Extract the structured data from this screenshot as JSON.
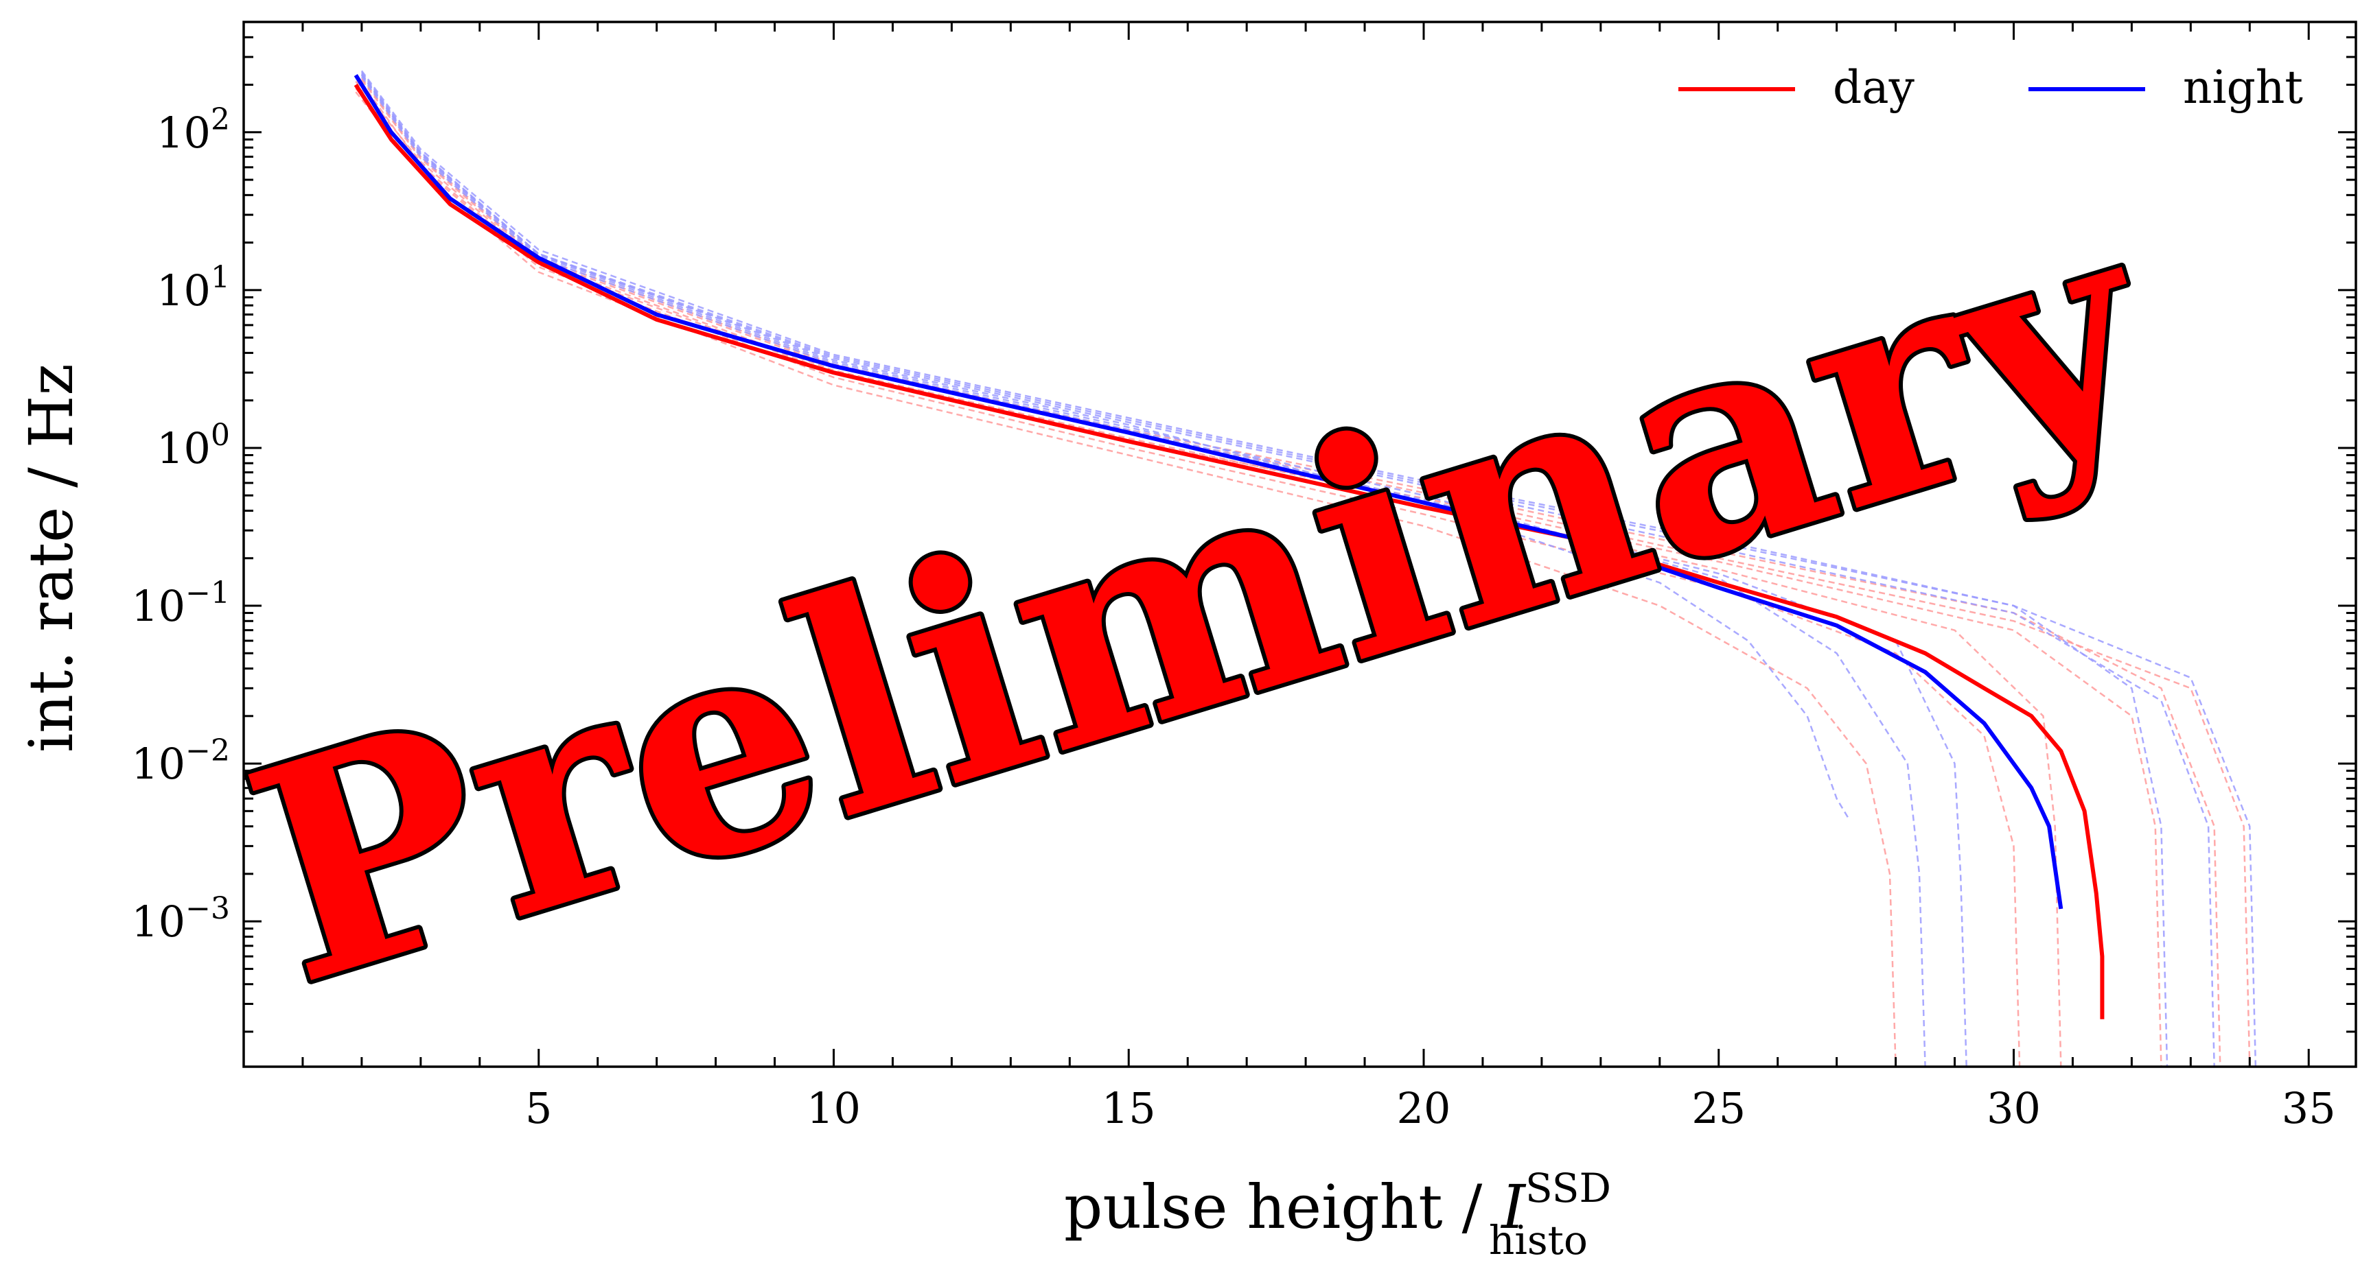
{
  "chart_data": {
    "type": "line",
    "title": "",
    "xlabel": {
      "main": "pulse height / ",
      "var": "I",
      "sup": "SSD",
      "sub": "histo"
    },
    "ylabel": "int. rate / Hz",
    "xlim": [
      0,
      35.8
    ],
    "ylim": [
      0.00012,
      500
    ],
    "yscale": "log",
    "xticks": [
      5,
      10,
      15,
      20,
      25,
      30,
      35
    ],
    "xtick_labels": [
      "5",
      "10",
      "15",
      "20",
      "25",
      "30",
      "35"
    ],
    "yticks": [
      {
        "value": 100,
        "base": "10",
        "exp": "2"
      },
      {
        "value": 10,
        "base": "10",
        "exp": "1"
      },
      {
        "value": 1,
        "base": "10",
        "exp": "0"
      },
      {
        "value": 0.1,
        "base": "10",
        "exp": "−1"
      },
      {
        "value": 0.01,
        "base": "10",
        "exp": "−2"
      },
      {
        "value": 0.001,
        "base": "10",
        "exp": "−3"
      }
    ],
    "grid": false,
    "legend_position": "top-right",
    "legend": [
      {
        "label": "day",
        "color": "#ff0000"
      },
      {
        "label": "night",
        "color": "#0000ff"
      }
    ],
    "series": [
      {
        "name": "day",
        "color": "#ff0000",
        "x": [
          1.9,
          2.5,
          3.5,
          5,
          7,
          10,
          15,
          20,
          22.5,
          25,
          27,
          28.5,
          29.5,
          30.3,
          30.8,
          31.2,
          31.4,
          31.5,
          31.5
        ],
        "y": [
          200,
          90,
          35,
          15,
          6.5,
          3.0,
          1.1,
          0.42,
          0.27,
          0.14,
          0.085,
          0.05,
          0.03,
          0.02,
          0.012,
          0.005,
          0.0015,
          0.0006,
          0.00024
        ]
      },
      {
        "name": "night",
        "color": "#0000ff",
        "x": [
          1.9,
          2.5,
          3.5,
          5,
          7,
          10,
          15,
          20,
          22.5,
          25,
          27,
          28.5,
          29.5,
          30.3,
          30.6,
          30.8
        ],
        "y": [
          230,
          100,
          38,
          16,
          7.0,
          3.3,
          1.25,
          0.45,
          0.27,
          0.13,
          0.075,
          0.038,
          0.018,
          0.007,
          0.004,
          0.0012
        ]
      }
    ],
    "background_series": [
      {
        "color": "#ff9a9a",
        "x": [
          1.9,
          3,
          5,
          10,
          15,
          20,
          24,
          26.5,
          27.5,
          27.9,
          28
        ],
        "y": [
          180,
          55,
          13,
          2.5,
          0.9,
          0.32,
          0.1,
          0.03,
          0.01,
          0.002,
          0.00012
        ]
      },
      {
        "color": "#ff9a9a",
        "x": [
          1.9,
          3,
          5,
          10,
          15,
          20,
          25,
          28,
          29.5,
          30,
          30.1
        ],
        "y": [
          190,
          60,
          14,
          2.8,
          1.0,
          0.38,
          0.13,
          0.05,
          0.015,
          0.003,
          0.00012
        ]
      },
      {
        "color": "#ff9a9a",
        "x": [
          1.9,
          3,
          5,
          10,
          15,
          20,
          25,
          29,
          30.5,
          30.7,
          30.8
        ],
        "y": [
          210,
          65,
          15,
          3.1,
          1.15,
          0.45,
          0.17,
          0.07,
          0.02,
          0.004,
          0.00012
        ]
      },
      {
        "color": "#ff9a9a",
        "x": [
          2.0,
          3,
          5,
          10,
          15,
          20,
          25,
          30,
          32.5,
          33.4,
          33.5
        ],
        "y": [
          220,
          70,
          16,
          3.4,
          1.3,
          0.55,
          0.22,
          0.09,
          0.03,
          0.004,
          0.00012
        ]
      },
      {
        "color": "#ff9a9a",
        "x": [
          2.0,
          3,
          5,
          10,
          15,
          20,
          25,
          30,
          33,
          33.9,
          34.0
        ],
        "y": [
          215,
          68,
          15.5,
          3.3,
          1.25,
          0.52,
          0.2,
          0.08,
          0.03,
          0.004,
          0.00012
        ]
      },
      {
        "color": "#ff9a9a",
        "x": [
          2.0,
          3,
          5,
          10,
          15,
          20,
          25,
          30,
          32,
          32.4,
          32.5
        ],
        "y": [
          205,
          62,
          14.5,
          3.0,
          1.1,
          0.48,
          0.19,
          0.07,
          0.02,
          0.004,
          0.00012
        ]
      },
      {
        "color": "#9a9aff",
        "x": [
          2.0,
          3,
          5,
          10,
          15,
          20,
          24,
          25.5,
          26.5,
          27,
          27.2
        ],
        "y": [
          240,
          75,
          17,
          3.6,
          1.4,
          0.45,
          0.14,
          0.06,
          0.02,
          0.006,
          0.0045
        ]
      },
      {
        "color": "#9a9aff",
        "x": [
          2.0,
          3,
          5,
          10,
          15,
          20,
          25,
          27,
          28.2,
          28.4,
          28.5
        ],
        "y": [
          230,
          72,
          16.5,
          3.5,
          1.35,
          0.5,
          0.15,
          0.05,
          0.01,
          0.002,
          0.00012
        ]
      },
      {
        "color": "#9a9aff",
        "x": [
          2.0,
          3,
          5,
          10,
          15,
          20,
          25,
          28,
          29,
          29.1,
          29.2
        ],
        "y": [
          225,
          70,
          16,
          3.4,
          1.3,
          0.47,
          0.16,
          0.06,
          0.01,
          0.002,
          0.00012
        ]
      },
      {
        "color": "#9a9aff",
        "x": [
          2.0,
          3,
          5,
          10,
          15,
          20,
          25,
          30,
          32,
          32.5,
          32.6
        ],
        "y": [
          235,
          74,
          17,
          3.8,
          1.5,
          0.6,
          0.25,
          0.1,
          0.03,
          0.004,
          0.00012
        ]
      },
      {
        "color": "#9a9aff",
        "x": [
          2.0,
          3,
          5,
          10,
          15,
          20,
          25,
          30,
          33,
          34.0,
          34.1
        ],
        "y": [
          245,
          78,
          18,
          3.9,
          1.55,
          0.62,
          0.26,
          0.1,
          0.035,
          0.004,
          0.00012
        ]
      },
      {
        "color": "#9a9aff",
        "x": [
          2.0,
          3,
          5,
          10,
          15,
          20,
          25,
          30,
          32.5,
          33.3,
          33.4
        ],
        "y": [
          232,
          73,
          16.8,
          3.7,
          1.45,
          0.58,
          0.23,
          0.09,
          0.025,
          0.004,
          0.00012
        ]
      }
    ]
  },
  "watermark": {
    "text": "Preliminary",
    "fill": "#ff0000",
    "stroke": "#000000"
  }
}
